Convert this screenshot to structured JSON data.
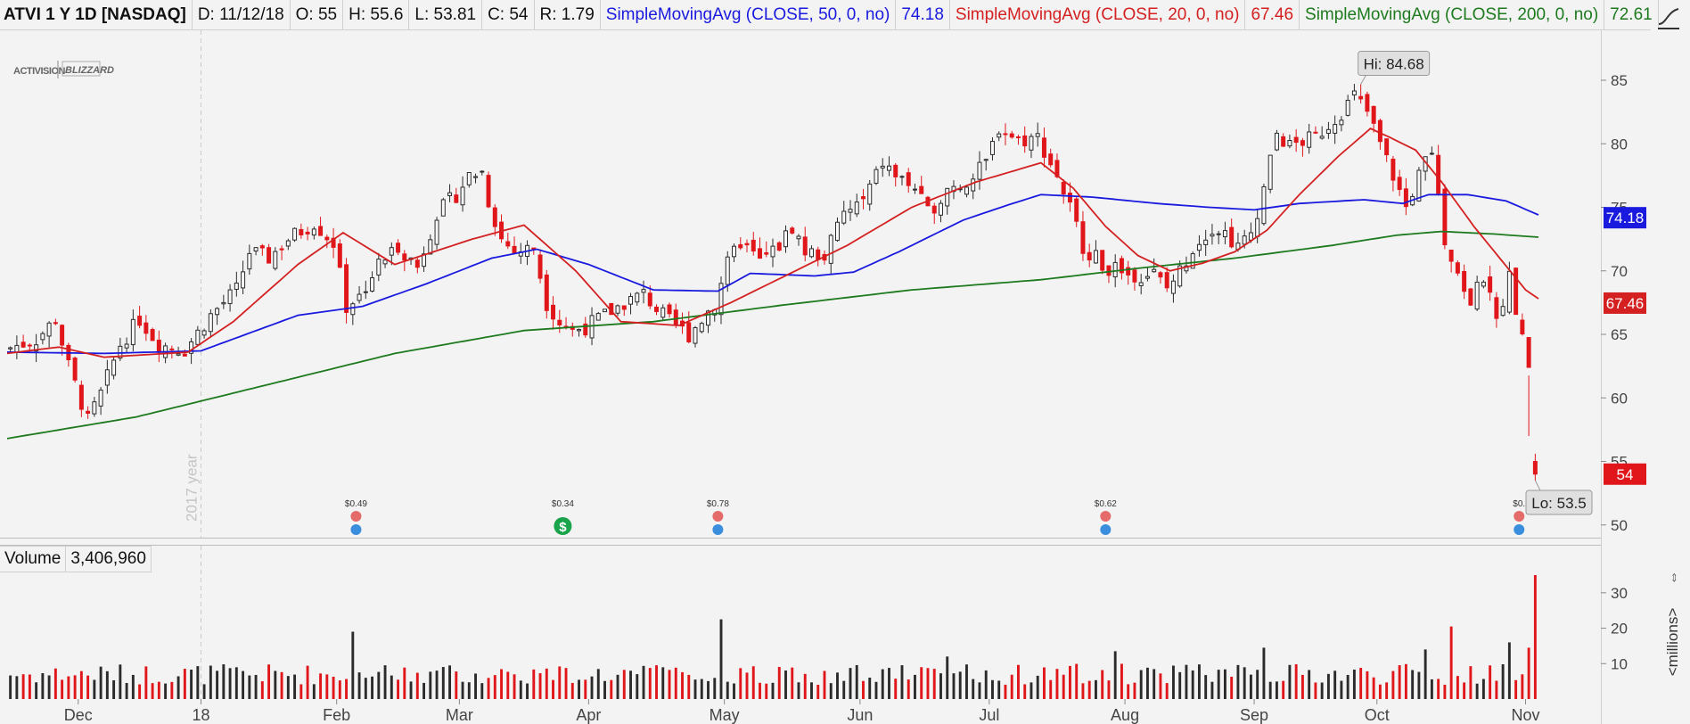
{
  "header": {
    "symbol": "ATVI 1 Y 1D [NASDAQ]",
    "date": "D: 11/12/18",
    "open": "O: 55",
    "high": "H: 55.6",
    "low": "L: 53.81",
    "close": "C: 54",
    "range": "R: 1.79",
    "sma50_label": "SimpleMovingAvg (CLOSE, 50, 0, no)",
    "sma50_value": "74.18",
    "sma20_label": "SimpleMovingAvg (CLOSE, 20, 0, no)",
    "sma20_value": "67.46",
    "sma200_label": "SimpleMovingAvg (CLOSE, 200, 0, no)",
    "sma200_value": "72.61"
  },
  "logo": {
    "brand1": "ACTIVISION",
    "brand2": "BLIZZARD"
  },
  "volume_panel": {
    "label": "Volume",
    "value": "3,406,960",
    "units_label": "<millions>"
  },
  "colors": {
    "up": "#2b2b2b",
    "down": "#e0161b",
    "sma20": "#d42020",
    "sma50": "#1a1adf",
    "sma200": "#1e7a1e",
    "price_badge": "#e0161b",
    "sma50_badge": "#1a1adf",
    "sma20_badge": "#d42020"
  },
  "chart_data": [
    {
      "type": "candlestick",
      "title": "ATVI 1 Y 1D [NASDAQ]",
      "ylim": [
        49,
        89
      ],
      "y_ticks": [
        "50",
        "55",
        "60",
        "65",
        "70",
        "75",
        "80",
        "85"
      ],
      "x_ticks": [
        {
          "label": "Dec",
          "bar": 11
        },
        {
          "label": "18",
          "bar": 30
        },
        {
          "label": "Feb",
          "bar": 51
        },
        {
          "label": "Mar",
          "bar": 70
        },
        {
          "label": "Apr",
          "bar": 90
        },
        {
          "label": "May",
          "bar": 111
        },
        {
          "label": "Jun",
          "bar": 132
        },
        {
          "label": "Jul",
          "bar": 152
        },
        {
          "label": "Aug",
          "bar": 173
        },
        {
          "label": "Sep",
          "bar": 193
        },
        {
          "label": "Oct",
          "bar": 212
        },
        {
          "label": "Nov",
          "bar": 235
        }
      ],
      "year_marker": {
        "label": "2017 year",
        "bar": 30
      },
      "annotations": {
        "high": "Hi: 84.68",
        "low": "Lo: 53.5"
      },
      "last_price": "54",
      "sma50_last": "74.18",
      "sma20_last": "67.46",
      "dividends": [
        {
          "label": "$0.49",
          "bar": 54,
          "type": "earnings"
        },
        {
          "label": "$0.34",
          "bar": 86,
          "type": "dividend"
        },
        {
          "label": "$0.78",
          "bar": 110,
          "type": "earnings"
        },
        {
          "label": "$0.62",
          "bar": 170,
          "type": "earnings"
        },
        {
          "label": "$0.",
          "bar": 234,
          "type": "earnings"
        }
      ],
      "bars": 237,
      "close_keypoints": [
        [
          0,
          63.8
        ],
        [
          5,
          64.6
        ],
        [
          8,
          66.2
        ],
        [
          10,
          62.5
        ],
        [
          13,
          58.2
        ],
        [
          15,
          60.3
        ],
        [
          18,
          64.2
        ],
        [
          21,
          66.2
        ],
        [
          24,
          64.2
        ],
        [
          28,
          63.8
        ],
        [
          32,
          66.5
        ],
        [
          36,
          68.5
        ],
        [
          38,
          71.5
        ],
        [
          41,
          71.0
        ],
        [
          44,
          72.5
        ],
        [
          48,
          73.8
        ],
        [
          51,
          72.2
        ],
        [
          53,
          67.2
        ],
        [
          55,
          68.0
        ],
        [
          58,
          70.5
        ],
        [
          61,
          72.0
        ],
        [
          64,
          70.3
        ],
        [
          67,
          74.5
        ],
        [
          70,
          76.0
        ],
        [
          72,
          77.5
        ],
        [
          74,
          77.8
        ],
        [
          75,
          75.5
        ],
        [
          77,
          72.5
        ],
        [
          79,
          71.5
        ],
        [
          82,
          71.8
        ],
        [
          84,
          67.5
        ],
        [
          86,
          66.0
        ],
        [
          88,
          65.3
        ],
        [
          90,
          65.6
        ],
        [
          93,
          66.5
        ],
        [
          96,
          67.5
        ],
        [
          99,
          68.2
        ],
        [
          101,
          67.0
        ],
        [
          103,
          66.0
        ],
        [
          106,
          65.0
        ],
        [
          108,
          66.2
        ],
        [
          110,
          67.5
        ],
        [
          112,
          70.5
        ],
        [
          114,
          72.3
        ],
        [
          117,
          70.7
        ],
        [
          120,
          72.0
        ],
        [
          122,
          73.5
        ],
        [
          124,
          71.5
        ],
        [
          127,
          71.2
        ],
        [
          130,
          74.5
        ],
        [
          133,
          75.5
        ],
        [
          136,
          78.5
        ],
        [
          138,
          77.5
        ],
        [
          141,
          76.5
        ],
        [
          143,
          74.5
        ],
        [
          146,
          76.5
        ],
        [
          148,
          76.8
        ],
        [
          150,
          77.3
        ],
        [
          152,
          78.5
        ],
        [
          154,
          81.3
        ],
        [
          157,
          80.3
        ],
        [
          160,
          80.5
        ],
        [
          163,
          77.5
        ],
        [
          165,
          75.0
        ],
        [
          167,
          72.0
        ],
        [
          170,
          70.5
        ],
        [
          173,
          69.8
        ],
        [
          176,
          69.7
        ],
        [
          178,
          69.8
        ],
        [
          180,
          68.6
        ],
        [
          182,
          70.0
        ],
        [
          184,
          71.8
        ],
        [
          187,
          73.5
        ],
        [
          189,
          73.0
        ],
        [
          191,
          71.8
        ],
        [
          193,
          73.0
        ],
        [
          195,
          76.5
        ],
        [
          197,
          80.8
        ],
        [
          199,
          79.8
        ],
        [
          201,
          80.2
        ],
        [
          203,
          80.5
        ],
        [
          205,
          81.5
        ],
        [
          207,
          82.5
        ],
        [
          209,
          83.8
        ],
        [
          211,
          82.5
        ],
        [
          213,
          80.0
        ],
        [
          215,
          77.5
        ],
        [
          217,
          75.0
        ],
        [
          219,
          77.5
        ],
        [
          221,
          79.5
        ],
        [
          223,
          72.5
        ],
        [
          225,
          69.8
        ],
        [
          227,
          67.5
        ],
        [
          229,
          69.5
        ],
        [
          231,
          66.0
        ],
        [
          233,
          69.5
        ],
        [
          235,
          64.5
        ],
        [
          236,
          62.7
        ],
        [
          237,
          54.5
        ],
        [
          238,
          54.0
        ]
      ],
      "sma20_keypoints": [
        [
          0,
          63.5
        ],
        [
          8,
          64.0
        ],
        [
          15,
          63.2
        ],
        [
          28,
          63.6
        ],
        [
          35,
          66.0
        ],
        [
          45,
          70.5
        ],
        [
          52,
          73.0
        ],
        [
          60,
          70.5
        ],
        [
          72,
          72.5
        ],
        [
          80,
          73.6
        ],
        [
          88,
          70.0
        ],
        [
          95,
          66.0
        ],
        [
          104,
          65.7
        ],
        [
          112,
          67.5
        ],
        [
          120,
          69.5
        ],
        [
          130,
          72.0
        ],
        [
          140,
          75.0
        ],
        [
          150,
          77.0
        ],
        [
          160,
          78.5
        ],
        [
          165,
          76.5
        ],
        [
          170,
          73.5
        ],
        [
          175,
          71.2
        ],
        [
          180,
          70.0
        ],
        [
          185,
          70.6
        ],
        [
          190,
          71.5
        ],
        [
          195,
          73.2
        ],
        [
          200,
          76.0
        ],
        [
          206,
          79.0
        ],
        [
          211,
          81.2
        ],
        [
          214,
          80.5
        ],
        [
          218,
          79.5
        ],
        [
          222,
          77.0
        ],
        [
          227,
          73.5
        ],
        [
          231,
          71.0
        ],
        [
          235,
          68.5
        ],
        [
          238,
          67.46
        ]
      ],
      "sma50_keypoints": [
        [
          0,
          63.6
        ],
        [
          15,
          63.5
        ],
        [
          30,
          63.7
        ],
        [
          45,
          66.5
        ],
        [
          55,
          67.2
        ],
        [
          65,
          69.0
        ],
        [
          75,
          71.0
        ],
        [
          82,
          71.7
        ],
        [
          90,
          70.5
        ],
        [
          100,
          68.5
        ],
        [
          110,
          68.4
        ],
        [
          115,
          69.8
        ],
        [
          125,
          69.6
        ],
        [
          131,
          69.9
        ],
        [
          138,
          71.5
        ],
        [
          148,
          74.0
        ],
        [
          155,
          75.2
        ],
        [
          160,
          76.0
        ],
        [
          168,
          75.8
        ],
        [
          178,
          75.3
        ],
        [
          186,
          75.0
        ],
        [
          193,
          74.8
        ],
        [
          200,
          75.3
        ],
        [
          210,
          75.6
        ],
        [
          216,
          75.3
        ],
        [
          220,
          76.0
        ],
        [
          226,
          76.0
        ],
        [
          232,
          75.5
        ],
        [
          238,
          74.18
        ]
      ],
      "sma200_keypoints": [
        [
          0,
          56.8
        ],
        [
          20,
          58.5
        ],
        [
          40,
          61.0
        ],
        [
          60,
          63.5
        ],
        [
          80,
          65.3
        ],
        [
          100,
          66.0
        ],
        [
          120,
          67.3
        ],
        [
          140,
          68.5
        ],
        [
          160,
          69.3
        ],
        [
          175,
          70.2
        ],
        [
          190,
          71.0
        ],
        [
          205,
          72.0
        ],
        [
          215,
          72.8
        ],
        [
          222,
          73.1
        ],
        [
          230,
          72.9
        ],
        [
          238,
          72.61
        ]
      ],
      "high_bar": 209,
      "low_bar": 236
    },
    {
      "type": "bar",
      "title": "Volume",
      "ylim": [
        0,
        36
      ],
      "y_ticks": [
        "10",
        "20",
        "30"
      ],
      "units": "millions",
      "spikes": [
        {
          "bar": 53,
          "value": 19
        },
        {
          "bar": 110,
          "value": 22.5
        },
        {
          "bar": 145,
          "value": 12
        },
        {
          "bar": 171,
          "value": 13.5
        },
        {
          "bar": 194,
          "value": 14.5
        },
        {
          "bar": 219,
          "value": 14
        },
        {
          "bar": 223,
          "value": 20.5
        },
        {
          "bar": 232,
          "value": 16
        },
        {
          "bar": 235,
          "value": 14.5
        },
        {
          "bar": 236,
          "value": 35
        }
      ]
    }
  ]
}
